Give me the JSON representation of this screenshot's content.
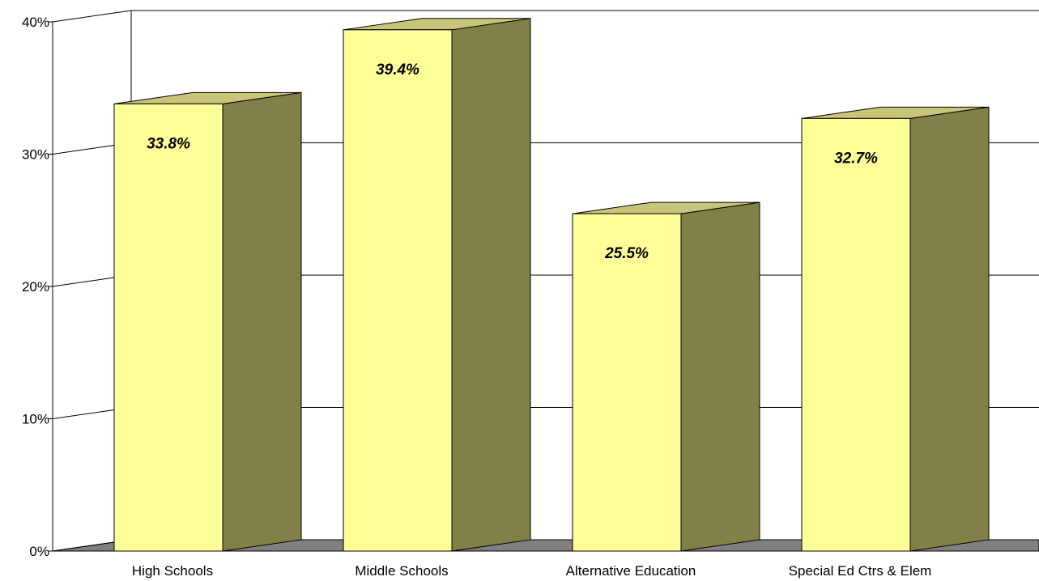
{
  "chart_data": {
    "type": "bar",
    "style": "3d-column",
    "categories": [
      "High Schools",
      "Middle Schools",
      "Alternative Education",
      "Special Ed Ctrs & Elem"
    ],
    "values": [
      33.8,
      39.4,
      25.5,
      32.7
    ],
    "data_labels": [
      "33.8%",
      "39.4%",
      "25.5%",
      "32.7%"
    ],
    "ylim": [
      0,
      40
    ],
    "yticks": [
      0,
      10,
      20,
      30,
      40
    ],
    "ytick_labels": [
      "0%",
      "10%",
      "20%",
      "30%",
      "40%"
    ],
    "title": "",
    "xlabel": "",
    "ylabel": "",
    "grid": true,
    "legend": false,
    "colors": {
      "bar_front": "#ffff99",
      "bar_side": "#808048",
      "bar_top": "#c8c47a",
      "floor": "#808080",
      "gridline": "#000000"
    }
  }
}
